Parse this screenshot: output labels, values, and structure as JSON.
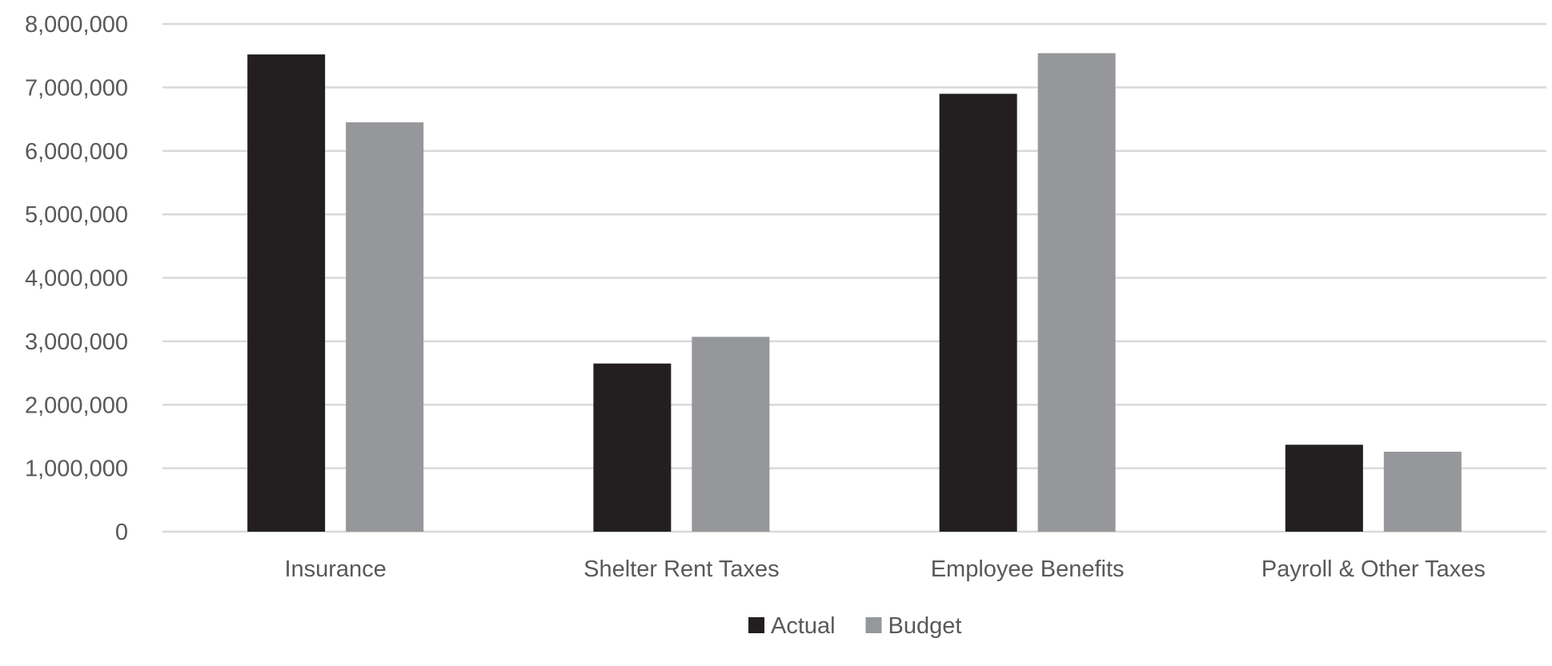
{
  "chart_data": {
    "type": "bar",
    "title": "",
    "xlabel": "",
    "ylabel": "",
    "categories": [
      "Insurance",
      "Shelter Rent Taxes",
      "Employee Benefits",
      "Payroll & Other Taxes"
    ],
    "series": [
      {
        "name": "Actual",
        "color": "#231f20",
        "values": [
          7520000,
          2650000,
          6900000,
          1370000
        ]
      },
      {
        "name": "Budget",
        "color": "#96979a",
        "values": [
          6450000,
          3070000,
          7540000,
          1260000
        ]
      }
    ],
    "ylim": [
      0,
      8000000
    ],
    "yticks": [
      0,
      1000000,
      2000000,
      3000000,
      4000000,
      5000000,
      6000000,
      7000000,
      8000000
    ],
    "ytick_labels": [
      "0",
      "1,000,000",
      "2,000,000",
      "3,000,000",
      "4,000,000",
      "5,000,000",
      "6,000,000",
      "7,000,000",
      "8,000,000"
    ],
    "grid": true,
    "gridline_color": "#d9d9d9",
    "legend_position": "bottom-center"
  }
}
